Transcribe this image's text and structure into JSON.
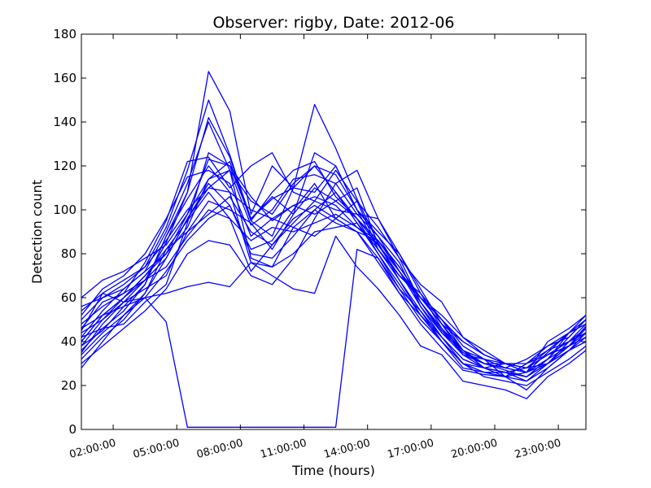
{
  "chart_data": {
    "type": "line",
    "title": "Observer: rigby, Date: 2012-06",
    "xlabel": "Time (hours)",
    "ylabel": "Detection count",
    "xlim": [
      0.5,
      24.3
    ],
    "ylim": [
      0,
      180
    ],
    "grid": false,
    "yticks": [
      0,
      20,
      40,
      60,
      80,
      100,
      120,
      140,
      160,
      180
    ],
    "xticks": [
      {
        "value": 2,
        "label": "02:00:00"
      },
      {
        "value": 5,
        "label": "05:00:00"
      },
      {
        "value": 8,
        "label": "08:00:00"
      },
      {
        "value": 11,
        "label": "11:00:00"
      },
      {
        "value": 14,
        "label": "14:00:00"
      },
      {
        "value": 17,
        "label": "17:00:00"
      },
      {
        "value": 20,
        "label": "20:00:00"
      },
      {
        "value": 23,
        "label": "23:00:00"
      }
    ],
    "x": [
      0.5,
      1.5,
      2.5,
      3.5,
      4.5,
      5.5,
      6.5,
      7.5,
      8.5,
      9.5,
      10.5,
      11.5,
      12.5,
      13.5,
      14.5,
      15.5,
      16.5,
      17.5,
      18.5,
      19.5,
      20.5,
      21.5,
      22.5,
      23.5,
      24.3
    ],
    "line_color": "#0000ff",
    "series": [
      {
        "values": [
          45,
          62,
          58,
          60,
          49,
          1,
          1,
          1,
          1,
          1,
          1,
          1,
          1,
          82,
          78,
          62,
          48,
          37,
          27,
          25,
          24,
          22,
          30,
          40,
          44
        ]
      },
      {
        "values": [
          40,
          52,
          60,
          70,
          80,
          98,
          123,
          120,
          96,
          105,
          110,
          120,
          116,
          100,
          82,
          70,
          62,
          50,
          36,
          30,
          27,
          24,
          32,
          38,
          47
        ]
      },
      {
        "values": [
          35,
          48,
          58,
          68,
          85,
          108,
          163,
          145,
          98,
          120,
          110,
          148,
          128,
          105,
          85,
          68,
          52,
          40,
          30,
          28,
          30,
          26,
          35,
          44,
          48
        ]
      },
      {
        "values": [
          50,
          60,
          66,
          74,
          92,
          118,
          150,
          125,
          95,
          108,
          118,
          122,
          106,
          96,
          86,
          72,
          58,
          45,
          35,
          30,
          28,
          32,
          38,
          42,
          50
        ]
      },
      {
        "values": [
          42,
          54,
          64,
          72,
          90,
          112,
          140,
          118,
          93,
          100,
          114,
          116,
          112,
          98,
          88,
          76,
          56,
          42,
          32,
          28,
          26,
          28,
          36,
          40,
          46
        ]
      },
      {
        "values": [
          38,
          45,
          56,
          66,
          88,
          105,
          120,
          108,
          76,
          74,
          92,
          100,
          108,
          94,
          80,
          64,
          50,
          40,
          30,
          26,
          24,
          30,
          34,
          38,
          42
        ]
      },
      {
        "values": [
          46,
          58,
          62,
          76,
          95,
          122,
          124,
          110,
          120,
          126,
          108,
          104,
          100,
          98,
          96,
          78,
          58,
          44,
          34,
          28,
          26,
          22,
          28,
          36,
          44
        ]
      },
      {
        "values": [
          52,
          64,
          70,
          80,
          96,
          115,
          118,
          112,
          88,
          96,
          102,
          106,
          102,
          92,
          84,
          70,
          60,
          48,
          34,
          30,
          28,
          26,
          32,
          44,
          52
        ]
      },
      {
        "values": [
          32,
          42,
          50,
          62,
          78,
          96,
          112,
          102,
          82,
          86,
          100,
          112,
          96,
          90,
          76,
          62,
          52,
          42,
          30,
          24,
          22,
          20,
          26,
          32,
          38
        ]
      },
      {
        "values": [
          28,
          40,
          52,
          62,
          82,
          95,
          108,
          96,
          72,
          84,
          94,
          104,
          118,
          104,
          82,
          68,
          54,
          40,
          28,
          26,
          24,
          18,
          28,
          36,
          40
        ]
      },
      {
        "values": [
          60,
          68,
          72,
          78,
          84,
          98,
          114,
          122,
          95,
          88,
          110,
          108,
          120,
          100,
          88,
          72,
          58,
          46,
          36,
          30,
          30,
          28,
          34,
          40,
          48
        ]
      },
      {
        "values": [
          44,
          50,
          58,
          64,
          70,
          90,
          104,
          100,
          94,
          82,
          98,
          110,
          104,
          96,
          80,
          66,
          52,
          40,
          30,
          26,
          26,
          24,
          30,
          38,
          44
        ]
      },
      {
        "values": [
          36,
          46,
          54,
          66,
          88,
          108,
          142,
          124,
          96,
          106,
          98,
          126,
          120,
          100,
          90,
          80,
          62,
          46,
          34,
          32,
          30,
          28,
          34,
          38,
          46
        ]
      },
      {
        "values": [
          48,
          56,
          62,
          68,
          74,
          88,
          100,
          96,
          86,
          92,
          90,
          94,
          98,
          92,
          86,
          74,
          60,
          50,
          40,
          34,
          30,
          30,
          36,
          44,
          50
        ]
      },
      {
        "values": [
          40,
          52,
          56,
          60,
          62,
          65,
          67,
          65,
          76,
          70,
          64,
          62,
          88,
          74,
          64,
          52,
          38,
          34,
          22,
          20,
          18,
          14,
          24,
          30,
          36
        ]
      },
      {
        "values": [
          56,
          60,
          64,
          72,
          80,
          92,
          114,
          118,
          78,
          74,
          80,
          90,
          92,
          94,
          82,
          70,
          60,
          50,
          38,
          32,
          28,
          26,
          32,
          42,
          50
        ]
      },
      {
        "values": [
          34,
          44,
          52,
          60,
          72,
          86,
          96,
          102,
          80,
          78,
          88,
          100,
          94,
          90,
          86,
          74,
          60,
          52,
          42,
          34,
          30,
          26,
          30,
          36,
          40
        ]
      },
      {
        "values": [
          42,
          46,
          48,
          58,
          66,
          94,
          126,
          120,
          106,
          95,
          102,
          98,
          104,
          110,
          84,
          72,
          56,
          44,
          36,
          32,
          24,
          26,
          40,
          46,
          52
        ]
      },
      {
        "values": [
          30,
          38,
          46,
          54,
          64,
          80,
          86,
          84,
          70,
          66,
          78,
          96,
          112,
          118,
          96,
          80,
          64,
          48,
          36,
          28,
          24,
          30,
          38,
          44,
          48
        ]
      },
      {
        "values": [
          54,
          62,
          68,
          74,
          86,
          100,
          110,
          108,
          100,
          96,
          92,
          88,
          96,
          104,
          92,
          78,
          66,
          58,
          42,
          36,
          30,
          28,
          30,
          38,
          46
        ]
      },
      {
        "values": [
          46,
          52,
          60,
          68,
          78,
          96,
          110,
          118,
          104,
          98,
          112,
          120,
          108,
          96,
          84,
          72,
          60,
          48,
          40,
          34,
          30,
          28,
          34,
          40,
          44
        ]
      },
      {
        "values": [
          38,
          50,
          60,
          70,
          82,
          90,
          98,
          106,
          90,
          84,
          96,
          102,
          96,
          90,
          78,
          64,
          54,
          42,
          32,
          28,
          26,
          24,
          30,
          36,
          42
        ]
      }
    ]
  }
}
